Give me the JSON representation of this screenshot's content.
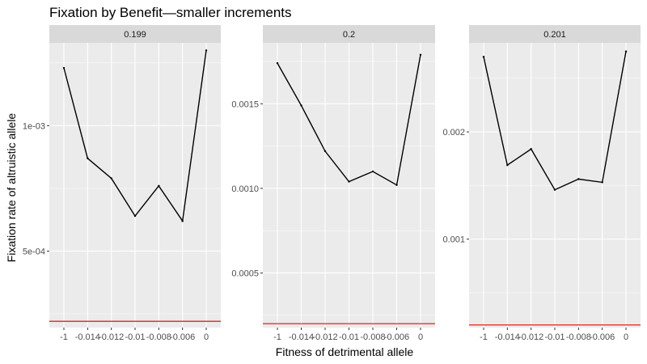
{
  "chart_data": {
    "type": "line",
    "title": "Fixation by Benefit—smaller increments",
    "xlabel": "Fitness of detrimental allele",
    "ylabel": "Fixation rate of altruistic allele",
    "x_tick_labels": [
      "-1",
      "-0.014",
      "-0.012",
      "-0.01",
      "-0.008",
      "-0.006",
      "0"
    ],
    "grid": true,
    "facets": [
      {
        "label": "0.199",
        "ylim": [
          0.000195,
          0.00133
        ],
        "y_ticks": [
          0.0005,
          0.001
        ],
        "y_tick_labels": [
          "5e-04",
          "1e-03"
        ],
        "values": [
          0.00123,
          0.00087,
          0.00079,
          0.00064,
          0.00076,
          0.00062,
          0.0013
        ],
        "reference": 0.00022
      },
      {
        "label": "0.2",
        "ylim": [
          0.000177,
          0.00186
        ],
        "y_ticks": [
          0.0005,
          0.001,
          0.0015
        ],
        "y_tick_labels": [
          "0.0005",
          "0.0010",
          "0.0015"
        ],
        "values": [
          0.00174,
          0.00149,
          0.00122,
          0.00104,
          0.0011,
          0.00102,
          0.00179
        ],
        "reference": 0.0002
      },
      {
        "label": "0.201",
        "ylim": [
          0.000175,
          0.00283
        ],
        "y_ticks": [
          0.001,
          0.002
        ],
        "y_tick_labels": [
          "0.001",
          "0.002"
        ],
        "values": [
          0.0027,
          0.00169,
          0.00184,
          0.00146,
          0.00156,
          0.00153,
          0.00275
        ],
        "reference": 0.0002
      }
    ]
  }
}
